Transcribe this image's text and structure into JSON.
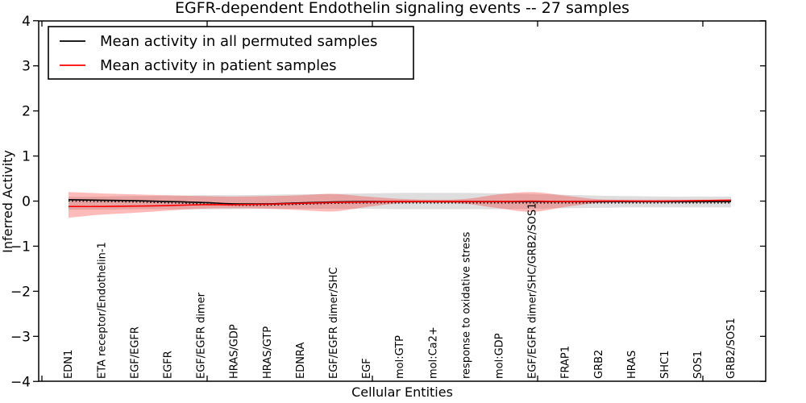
{
  "chart_data": {
    "type": "line",
    "title": "EGFR-dependent Endothelin signaling events -- 27 samples",
    "xlabel": "Cellular Entities",
    "ylabel": "Inferred Activity",
    "ylim": [
      -4,
      4
    ],
    "ytick_values": [
      4,
      3,
      2,
      1,
      0,
      -1,
      -2,
      -3,
      -4
    ],
    "ytick_labels": [
      "4",
      "3",
      "2",
      "1",
      "0",
      "−1",
      "−2",
      "−3",
      "−4"
    ],
    "xtick_positions": [
      0,
      5,
      10,
      15,
      20
    ],
    "grid": false,
    "legend_position": "upper left",
    "background_color": "#ffffff",
    "frame_color": "#000000",
    "categories": [
      "EDN1",
      "ETA receptor/Endothelin-1",
      "EGF/EGFR",
      "EGFR",
      "EGF/EGFR dimer",
      "HRAS/GDP",
      "HRAS/GTP",
      "EDNRA",
      "EGF/EGFR dimer/SHC",
      "EGF",
      "mol:GTP",
      "mol:Ca2+",
      "response to oxidative stress",
      "mol:GDP",
      "EGF/EGFR dimer/SHC/GRB2/SOS1",
      "FRAP1",
      "GRB2",
      "HRAS",
      "SHC1",
      "SOS1",
      "GRB2/SOS1"
    ],
    "series": [
      {
        "name": "Mean activity in all permuted samples",
        "color": "#000000",
        "line_style": "solid with dotted overlay",
        "values": [
          0.03,
          0.02,
          0.01,
          -0.01,
          -0.03,
          -0.06,
          -0.06,
          -0.04,
          -0.02,
          -0.01,
          -0.01,
          -0.01,
          -0.01,
          -0.01,
          -0.01,
          -0.01,
          -0.01,
          -0.01,
          -0.01,
          -0.01,
          -0.01
        ],
        "band_upper": [
          0.09,
          0.1,
          0.11,
          0.12,
          0.13,
          0.13,
          0.14,
          0.15,
          0.16,
          0.17,
          0.18,
          0.18,
          0.18,
          0.17,
          0.16,
          0.14,
          0.12,
          0.11,
          0.1,
          0.1,
          0.1
        ],
        "band_lower": [
          -0.19,
          -0.19,
          -0.18,
          -0.18,
          -0.18,
          -0.18,
          -0.17,
          -0.17,
          -0.17,
          -0.17,
          -0.18,
          -0.18,
          -0.18,
          -0.18,
          -0.17,
          -0.16,
          -0.15,
          -0.14,
          -0.14,
          -0.14,
          -0.14
        ],
        "band_color": "#888888",
        "band_opacity": 0.28
      },
      {
        "name": "Mean activity in patient samples",
        "color": "#ff0000",
        "line_style": "solid",
        "values": [
          -0.12,
          -0.12,
          -0.11,
          -0.1,
          -0.08,
          -0.08,
          -0.07,
          -0.05,
          -0.03,
          -0.02,
          -0.01,
          -0.01,
          -0.01,
          -0.01,
          0.0,
          -0.01,
          0.0,
          0.0,
          0.0,
          0.01,
          0.02
        ],
        "band_upper": [
          0.2,
          0.17,
          0.15,
          0.13,
          0.11,
          0.1,
          0.11,
          0.13,
          0.16,
          0.1,
          0.05,
          0.03,
          0.05,
          0.15,
          0.2,
          0.12,
          0.04,
          0.03,
          0.03,
          0.03,
          0.04
        ],
        "band_lower": [
          -0.37,
          -0.3,
          -0.26,
          -0.21,
          -0.17,
          -0.16,
          -0.17,
          -0.2,
          -0.23,
          -0.13,
          -0.05,
          -0.04,
          -0.06,
          -0.16,
          -0.24,
          -0.13,
          -0.04,
          -0.03,
          -0.03,
          -0.03,
          -0.02
        ],
        "band_color": "#ff0000",
        "band_opacity": 0.27
      }
    ]
  }
}
